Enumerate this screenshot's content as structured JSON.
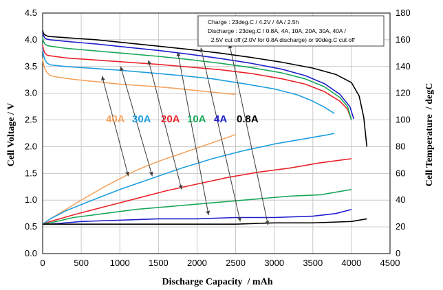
{
  "chart_data": {
    "type": "line",
    "xlabel": "Discharge Capacity  / mAh",
    "ylabel": "Cell Voltage / V",
    "y2label": "Cell Temperature  / degC",
    "xlim": [
      0,
      4500
    ],
    "ylim": [
      0,
      4.5
    ],
    "y2lim": [
      0,
      180
    ],
    "xticks": [
      "0",
      "500",
      "1000",
      "1500",
      "2000",
      "2500",
      "3000",
      "3500",
      "4000",
      "4500"
    ],
    "yticks": [
      "0.0",
      "0.5",
      "1.0",
      "1.5",
      "2.0",
      "2.5",
      "3.0",
      "3.5",
      "4.0",
      "4.5"
    ],
    "y2ticks": [
      "0",
      "20",
      "40",
      "60",
      "80",
      "100",
      "120",
      "140",
      "160",
      "180"
    ],
    "grid": true,
    "annotation": {
      "lines": [
        "Charge :  23deg.C / 4.2V / 4A / 2.5h",
        "Discharge : 23deg.C / 0.8A, 4A, 10A, 20A, 30A, 40A /",
        "  2.5V cut off (2.0V for 0.8A discharge) or 90deg.C cut off"
      ]
    },
    "series": [
      {
        "name": "40A",
        "color": "#f4a460",
        "voltage": {
          "x": [
            0,
            10,
            30,
            60,
            100,
            200,
            400,
            600,
            800,
            1000,
            1200,
            1500,
            1800,
            2000,
            2200,
            2400,
            2500
          ],
          "y": [
            3.65,
            3.55,
            3.45,
            3.38,
            3.33,
            3.3,
            3.26,
            3.23,
            3.2,
            3.17,
            3.15,
            3.12,
            3.08,
            3.05,
            3.02,
            2.99,
            2.98
          ]
        },
        "temperature": {
          "x": [
            0,
            100,
            300,
            500,
            800,
            1000,
            1200,
            1500,
            1800,
            2000,
            2200,
            2400,
            2500
          ],
          "y": [
            22,
            26,
            33,
            40,
            50,
            56,
            62,
            69,
            75,
            79,
            83,
            87,
            89
          ]
        }
      },
      {
        "name": "30A",
        "color": "#1e9ee0",
        "voltage": {
          "x": [
            0,
            10,
            30,
            60,
            100,
            300,
            600,
            1000,
            1400,
            1800,
            2200,
            2600,
            3000,
            3300,
            3500,
            3650,
            3780
          ],
          "y": [
            3.85,
            3.72,
            3.62,
            3.56,
            3.53,
            3.5,
            3.47,
            3.43,
            3.38,
            3.33,
            3.27,
            3.18,
            3.08,
            2.97,
            2.85,
            2.74,
            2.62
          ]
        },
        "temperature": {
          "x": [
            0,
            100,
            300,
            600,
            1000,
            1400,
            1800,
            2200,
            2600,
            3000,
            3400,
            3700,
            3780
          ],
          "y": [
            22,
            26,
            32,
            39,
            48,
            56,
            64,
            71,
            77,
            82,
            86,
            89,
            90
          ]
        }
      },
      {
        "name": "20A",
        "color": "#e8232a",
        "voltage": {
          "x": [
            0,
            10,
            30,
            60,
            100,
            300,
            700,
            1100,
            1500,
            1900,
            2300,
            2700,
            3100,
            3400,
            3650,
            3850,
            3950,
            4000
          ],
          "y": [
            3.9,
            3.82,
            3.75,
            3.71,
            3.7,
            3.66,
            3.62,
            3.58,
            3.54,
            3.49,
            3.44,
            3.37,
            3.27,
            3.17,
            3.03,
            2.85,
            2.7,
            2.5
          ]
        },
        "temperature": {
          "x": [
            0,
            100,
            400,
            800,
            1200,
            1600,
            2000,
            2400,
            2800,
            3200,
            3600,
            4000
          ],
          "y": [
            22,
            24,
            29,
            35,
            41,
            47,
            52,
            57,
            61,
            64,
            68,
            71
          ]
        }
      },
      {
        "name": "10A",
        "color": "#1aa85a",
        "voltage": {
          "x": [
            0,
            10,
            30,
            60,
            100,
            300,
            700,
            1100,
            1500,
            1900,
            2300,
            2700,
            3100,
            3400,
            3650,
            3850,
            3950,
            4000
          ],
          "y": [
            4.05,
            3.97,
            3.92,
            3.89,
            3.88,
            3.84,
            3.79,
            3.74,
            3.69,
            3.63,
            3.56,
            3.48,
            3.38,
            3.27,
            3.12,
            2.92,
            2.75,
            2.5
          ]
        },
        "temperature": {
          "x": [
            0,
            100,
            400,
            800,
            1200,
            1600,
            2000,
            2400,
            2800,
            3200,
            3600,
            4000
          ],
          "y": [
            22,
            23,
            27,
            30,
            33,
            35,
            37,
            39,
            41,
            43,
            44,
            48
          ]
        }
      },
      {
        "name": "4A",
        "color": "#1f1fcc",
        "voltage": {
          "x": [
            0,
            10,
            30,
            60,
            100,
            300,
            700,
            1100,
            1500,
            1900,
            2300,
            2700,
            3100,
            3400,
            3650,
            3850,
            3980,
            4030
          ],
          "y": [
            4.15,
            4.08,
            4.03,
            4.01,
            4.0,
            3.97,
            3.92,
            3.86,
            3.8,
            3.73,
            3.65,
            3.56,
            3.45,
            3.33,
            3.18,
            2.98,
            2.75,
            2.52
          ]
        },
        "temperature": {
          "x": [
            0,
            100,
            500,
            1000,
            1500,
            2000,
            2500,
            3000,
            3500,
            3800,
            4000
          ],
          "y": [
            22,
            22,
            24,
            25,
            26,
            26,
            27,
            27,
            28,
            30,
            33
          ]
        }
      },
      {
        "name": "0.8A",
        "color": "#000000",
        "voltage": {
          "x": [
            0,
            10,
            30,
            60,
            100,
            300,
            700,
            1100,
            1500,
            1900,
            2300,
            2700,
            3100,
            3500,
            3800,
            4000,
            4100,
            4160,
            4200
          ],
          "y": [
            4.18,
            4.12,
            4.09,
            4.07,
            4.06,
            4.04,
            4.0,
            3.94,
            3.88,
            3.82,
            3.75,
            3.67,
            3.58,
            3.47,
            3.35,
            3.2,
            2.95,
            2.55,
            2.0
          ]
        },
        "temperature": {
          "x": [
            0,
            500,
            1000,
            1500,
            2000,
            2500,
            3000,
            3500,
            4000,
            4200
          ],
          "y": [
            22,
            22,
            22,
            22,
            22,
            22,
            23,
            23,
            24,
            26
          ]
        }
      }
    ],
    "arrows": [
      {
        "series": "40A",
        "from": [
          770,
          3.32
        ],
        "to": [
          1110,
          1.45
        ]
      },
      {
        "series": "30A",
        "from": [
          1010,
          3.5
        ],
        "to": [
          1420,
          1.45
        ]
      },
      {
        "series": "20A",
        "from": [
          1370,
          3.62
        ],
        "to": [
          1800,
          1.2
        ]
      },
      {
        "series": "10A",
        "from": [
          1750,
          3.77
        ],
        "to": [
          2150,
          0.72
        ]
      },
      {
        "series": "4A",
        "from": [
          2050,
          3.85
        ],
        "to": [
          2560,
          0.6
        ]
      },
      {
        "series": "0.8A",
        "from": [
          2420,
          3.92
        ],
        "to": [
          2920,
          0.53
        ]
      }
    ]
  }
}
